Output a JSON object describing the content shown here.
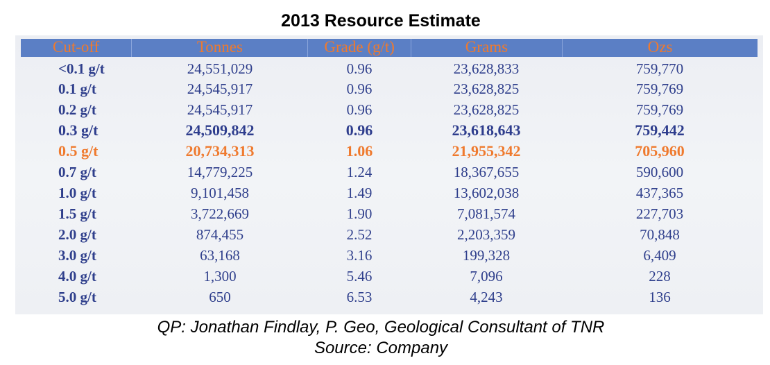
{
  "title": "2013 Resource Estimate",
  "colors": {
    "header_bg": "#5b7fc5",
    "header_text": "#ef7a2e",
    "body_text": "#2f3f8c",
    "highlight": "#ef7a2e"
  },
  "table": {
    "headers": [
      "Cut-off",
      "Tonnes",
      "Grade (g/t)",
      "Grams",
      "Ozs"
    ],
    "rows": [
      [
        "<0.1 g/t",
        "24,551,029",
        "0.96",
        "23,628,833",
        "759,770"
      ],
      [
        "0.1 g/t",
        "24,545,917",
        "0.96",
        "23,628,825",
        "759,769"
      ],
      [
        "0.2 g/t",
        "24,545,917",
        "0.96",
        "23,628,825",
        "759,769"
      ],
      [
        "0.3 g/t",
        "24,509,842",
        "0.96",
        "23,618,643",
        "759,442"
      ],
      [
        "0.5 g/t",
        "20,734,313",
        "1.06",
        "21,955,342",
        "705,960"
      ],
      [
        "0.7 g/t",
        "14,779,225",
        "1.24",
        "18,367,655",
        "590,600"
      ],
      [
        "1.0 g/t",
        "9,101,458",
        "1.49",
        "13,602,038",
        "437,365"
      ],
      [
        "1.5 g/t",
        "3,722,669",
        "1.90",
        "7,081,574",
        "227,703"
      ],
      [
        "2.0 g/t",
        "874,455",
        "2.52",
        "2,203,359",
        "70,848"
      ],
      [
        "3.0 g/t",
        "63,168",
        "3.16",
        "199,328",
        "6,409"
      ],
      [
        "4.0 g/t",
        "1,300",
        "5.46",
        "7,096",
        "228"
      ],
      [
        "5.0 g/t",
        "650",
        "6.53",
        "4,243",
        "136"
      ]
    ]
  },
  "footer": {
    "line1": "QP: Jonathan Findlay, P. Geo, Geological Consultant of TNR",
    "line2": "Source: Company"
  }
}
